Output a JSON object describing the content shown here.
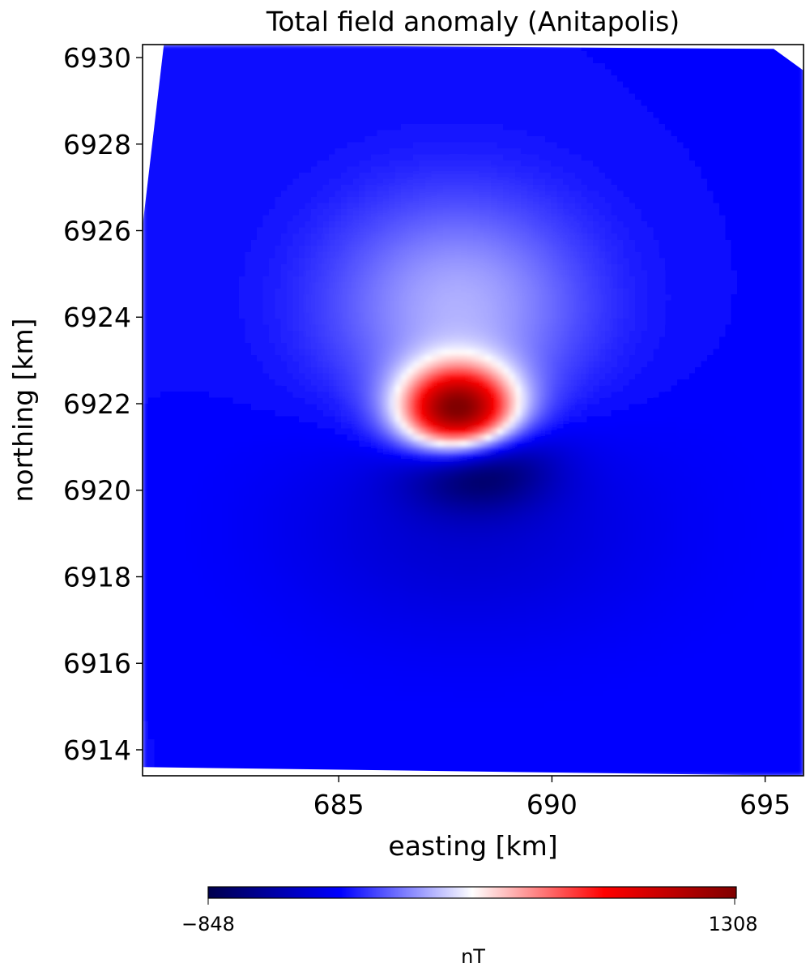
{
  "chart_data": {
    "type": "heatmap",
    "title": "Total field anomaly (Anitapolis)",
    "xlabel": "easting [km]",
    "ylabel": "northing [km]",
    "xlim": [
      680.4,
      695.9
    ],
    "ylim": [
      6913.4,
      6930.3
    ],
    "x_ticks": [
      685,
      690,
      695
    ],
    "x_tick_labels": [
      "685",
      "690",
      "695"
    ],
    "y_ticks": [
      6914,
      6916,
      6918,
      6920,
      6922,
      6924,
      6926,
      6928,
      6930
    ],
    "y_tick_labels": [
      "6914",
      "6916",
      "6918",
      "6920",
      "6922",
      "6924",
      "6926",
      "6928",
      "6930"
    ],
    "grid": false,
    "colormap": "seismic",
    "colormap_stops": [
      "#00004d",
      "#0000ff",
      "#ffffff",
      "#ff0000",
      "#800000"
    ],
    "colorbar": {
      "orientation": "horizontal",
      "placement": "bottom",
      "min": -848,
      "max": 1308,
      "tick_labels": [
        "−848",
        "1308"
      ],
      "label": "nT"
    },
    "survey_outline_km": [
      [
        680.9,
        6930.3
      ],
      [
        695.2,
        6930.2
      ],
      [
        695.9,
        6929.7
      ],
      [
        695.9,
        6913.4
      ],
      [
        680.4,
        6913.6
      ],
      [
        680.4,
        6926.1
      ]
    ],
    "background_level_nT": -300,
    "anomalies": [
      {
        "kind": "positive",
        "center": [
          687.8,
          6921.8
        ],
        "peak_nT": 1308
      },
      {
        "kind": "negative",
        "center": [
          688.2,
          6920.6
        ],
        "peak_nT": -848
      }
    ]
  }
}
